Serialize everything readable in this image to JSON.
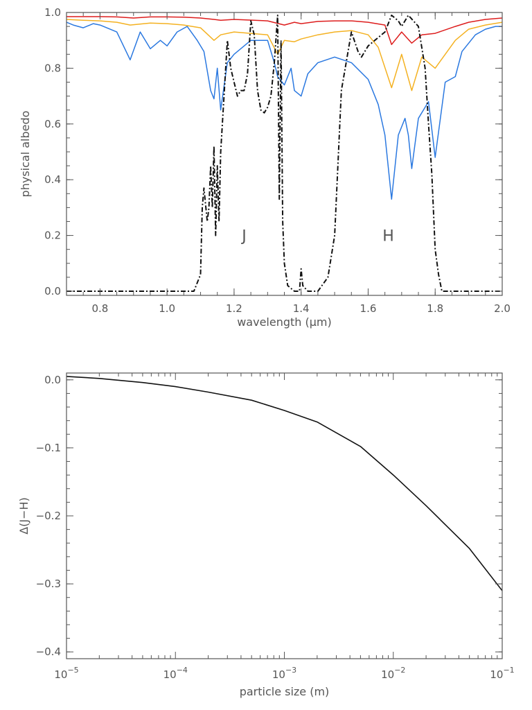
{
  "chart_data": [
    {
      "type": "line",
      "xlabel": "wavelength (μm)",
      "ylabel": "physical albedo",
      "xlim": [
        0.7,
        2.0
      ],
      "ylim": [
        -0.015,
        1.0
      ],
      "xticks": [
        0.8,
        1.0,
        1.2,
        1.4,
        1.6,
        1.8,
        2.0
      ],
      "xtick_labels": [
        "0.8",
        "1.0",
        "1.2",
        "1.4",
        "1.6",
        "1.8",
        "2.0"
      ],
      "yticks": [
        0.0,
        0.2,
        0.4,
        0.6,
        0.8,
        1.0
      ],
      "ytick_labels": [
        "0.0",
        "0.2",
        "0.4",
        "0.6",
        "0.8",
        "1.0"
      ],
      "annotations": [
        {
          "text": "J",
          "x": 1.23,
          "y": 0.2
        },
        {
          "text": "H",
          "x": 1.66,
          "y": 0.2
        }
      ],
      "series_styles": [
        {
          "color": "#dd1c1c",
          "dash": "solid"
        },
        {
          "color": "#f4b120",
          "dash": "solid"
        },
        {
          "color": "#2a78e0",
          "dash": "solid"
        },
        {
          "color": "#111111",
          "dash": "dashdot"
        }
      ],
      "series": [
        {
          "x": [
            0.7,
            0.75,
            0.8,
            0.85,
            0.9,
            0.95,
            1.0,
            1.05,
            1.1,
            1.14,
            1.16,
            1.2,
            1.3,
            1.35,
            1.38,
            1.4,
            1.45,
            1.5,
            1.55,
            1.6,
            1.65,
            1.67,
            1.7,
            1.73,
            1.76,
            1.8,
            1.86,
            1.9,
            1.95,
            2.0
          ],
          "values": [
            0.985,
            0.985,
            0.985,
            0.984,
            0.98,
            0.984,
            0.984,
            0.983,
            0.98,
            0.975,
            0.972,
            0.975,
            0.97,
            0.955,
            0.965,
            0.96,
            0.968,
            0.97,
            0.97,
            0.965,
            0.955,
            0.885,
            0.93,
            0.89,
            0.92,
            0.925,
            0.95,
            0.965,
            0.975,
            0.98
          ]
        },
        {
          "x": [
            0.7,
            0.75,
            0.8,
            0.85,
            0.89,
            0.95,
            1.0,
            1.05,
            1.1,
            1.14,
            1.16,
            1.2,
            1.3,
            1.33,
            1.35,
            1.38,
            1.4,
            1.45,
            1.5,
            1.55,
            1.6,
            1.63,
            1.67,
            1.7,
            1.73,
            1.76,
            1.8,
            1.86,
            1.9,
            1.95,
            2.0
          ],
          "values": [
            0.975,
            0.972,
            0.97,
            0.965,
            0.955,
            0.962,
            0.96,
            0.955,
            0.945,
            0.9,
            0.92,
            0.93,
            0.92,
            0.85,
            0.9,
            0.895,
            0.905,
            0.92,
            0.93,
            0.935,
            0.92,
            0.875,
            0.73,
            0.85,
            0.72,
            0.84,
            0.8,
            0.9,
            0.94,
            0.955,
            0.965
          ]
        },
        {
          "x": [
            0.7,
            0.72,
            0.75,
            0.78,
            0.8,
            0.85,
            0.89,
            0.92,
            0.95,
            0.98,
            1.0,
            1.03,
            1.06,
            1.09,
            1.11,
            1.13,
            1.14,
            1.15,
            1.16,
            1.18,
            1.2,
            1.25,
            1.3,
            1.32,
            1.33,
            1.35,
            1.37,
            1.38,
            1.4,
            1.42,
            1.45,
            1.5,
            1.55,
            1.6,
            1.63,
            1.65,
            1.67,
            1.69,
            1.71,
            1.72,
            1.73,
            1.75,
            1.78,
            1.8,
            1.83,
            1.86,
            1.88,
            1.92,
            1.95,
            1.98,
            2.0
          ],
          "values": [
            0.965,
            0.955,
            0.945,
            0.96,
            0.955,
            0.93,
            0.83,
            0.93,
            0.87,
            0.9,
            0.88,
            0.93,
            0.95,
            0.9,
            0.86,
            0.72,
            0.69,
            0.8,
            0.65,
            0.82,
            0.85,
            0.9,
            0.9,
            0.82,
            0.77,
            0.74,
            0.8,
            0.72,
            0.7,
            0.78,
            0.82,
            0.84,
            0.82,
            0.76,
            0.67,
            0.56,
            0.33,
            0.56,
            0.62,
            0.56,
            0.44,
            0.62,
            0.68,
            0.48,
            0.75,
            0.77,
            0.86,
            0.92,
            0.94,
            0.95,
            0.95
          ]
        },
        {
          "x": [
            0.7,
            1.08,
            1.1,
            1.105,
            1.11,
            1.12,
            1.125,
            1.13,
            1.135,
            1.14,
            1.145,
            1.15,
            1.155,
            1.16,
            1.17,
            1.18,
            1.19,
            1.2,
            1.21,
            1.22,
            1.23,
            1.24,
            1.25,
            1.26,
            1.27,
            1.28,
            1.29,
            1.3,
            1.31,
            1.32,
            1.33,
            1.335,
            1.34,
            1.345,
            1.35,
            1.36,
            1.38,
            1.395,
            1.4,
            1.405,
            1.42,
            1.45,
            1.48,
            1.5,
            1.52,
            1.55,
            1.57,
            1.58,
            1.6,
            1.62,
            1.65,
            1.67,
            1.69,
            1.7,
            1.72,
            1.75,
            1.77,
            1.78,
            1.79,
            1.8,
            1.81,
            1.82,
            2.0
          ],
          "values": [
            0.0,
            0.0,
            0.06,
            0.3,
            0.37,
            0.25,
            0.3,
            0.45,
            0.3,
            0.52,
            0.2,
            0.45,
            0.25,
            0.5,
            0.7,
            0.9,
            0.8,
            0.75,
            0.7,
            0.72,
            0.72,
            0.78,
            0.97,
            0.92,
            0.72,
            0.65,
            0.64,
            0.66,
            0.7,
            0.82,
            0.99,
            0.33,
            0.9,
            0.25,
            0.1,
            0.02,
            0.0,
            0.0,
            0.08,
            0.02,
            0.0,
            0.0,
            0.05,
            0.2,
            0.72,
            0.93,
            0.86,
            0.84,
            0.88,
            0.9,
            0.93,
            0.99,
            0.97,
            0.95,
            0.99,
            0.95,
            0.8,
            0.6,
            0.42,
            0.15,
            0.06,
            0.0,
            0.0
          ]
        }
      ]
    },
    {
      "type": "line",
      "xlabel": "particle size (m)",
      "ylabel": "Δ(J−H)",
      "xscale": "log",
      "xlim": [
        1e-05,
        0.1
      ],
      "ylim": [
        -0.41,
        0.01
      ],
      "xticks": [
        1e-05,
        0.0001,
        0.001,
        0.01,
        0.1
      ],
      "xtick_labels": [
        {
          "base": "10",
          "exp": "−5"
        },
        {
          "base": "10",
          "exp": "−4"
        },
        {
          "base": "10",
          "exp": "−3"
        },
        {
          "base": "10",
          "exp": "−2"
        },
        {
          "base": "10",
          "exp": "−1"
        }
      ],
      "yticks": [
        0.0,
        -0.1,
        -0.2,
        -0.3,
        -0.4
      ],
      "ytick_labels": [
        "0.0",
        "−0.1",
        "−0.2",
        "−0.3",
        "−0.4"
      ],
      "series_styles": [
        {
          "color": "#111111",
          "dash": "solid"
        }
      ],
      "series": [
        {
          "x": [
            1e-05,
            2e-05,
            5e-05,
            0.0001,
            0.0002,
            0.0005,
            0.001,
            0.002,
            0.005,
            0.01,
            0.02,
            0.05,
            0.1
          ],
          "values": [
            0.005,
            0.002,
            -0.004,
            -0.01,
            -0.018,
            -0.03,
            -0.045,
            -0.062,
            -0.098,
            -0.14,
            -0.185,
            -0.248,
            -0.31
          ]
        }
      ]
    }
  ]
}
